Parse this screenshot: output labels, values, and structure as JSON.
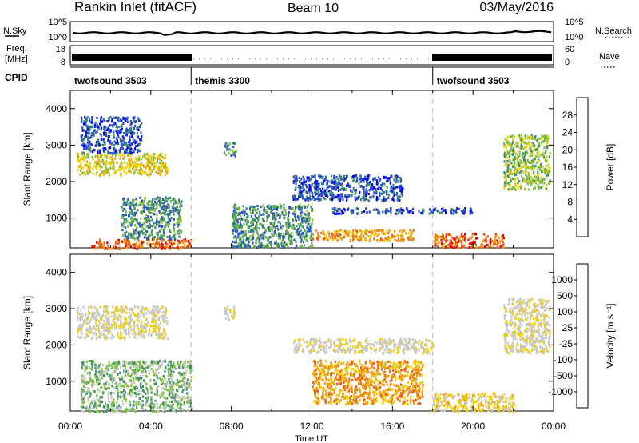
{
  "header": {
    "station": "Rankin Inlet (fitACF)",
    "beam": "Beam 10",
    "date": "03/May/2016"
  },
  "summary_panels": {
    "nsky_label": "N.Sky",
    "nsky_ticks": [
      "10^5",
      "10^0"
    ],
    "nsearch_label": "N.Search",
    "nsearch_ticks": [
      "10^5",
      "10^0"
    ],
    "freq_label": "Freq.",
    "freq_unit": "[MHz]",
    "freq_ticks": [
      "18",
      "8"
    ],
    "nave_label": "Nave",
    "nave_ticks": [
      "60",
      "0"
    ],
    "cpid_label": "CPID",
    "cpid_segments": [
      {
        "start_hour": 0,
        "end_hour": 6,
        "label": "twofsound 3503"
      },
      {
        "start_hour": 6,
        "end_hour": 18,
        "label": "themis 3300"
      },
      {
        "start_hour": 18,
        "end_hour": 24,
        "label": "twofsound 3503"
      }
    ]
  },
  "chart_data": [
    {
      "type": "heatmap",
      "panel": "power",
      "xlabel": "Time UT",
      "ylabel": "Slant Range [km]",
      "xlim": [
        0,
        24
      ],
      "ylim": [
        180,
        4500
      ],
      "yticks": [
        1000,
        2000,
        3000,
        4000
      ],
      "colorbar": {
        "label": "Power [dB]",
        "ticks": [
          "28",
          "24",
          "20",
          "16",
          "12",
          "8",
          "4"
        ],
        "colors": [
          "#0000ff",
          "#2a52c8",
          "#3a8f6a",
          "#7fbf3f",
          "#f0d000",
          "#f5a000",
          "#f46010",
          "#e00000"
        ]
      },
      "regions": [
        {
          "t": [
            0.3,
            4.8
          ],
          "r": [
            2200,
            2800
          ],
          "level": 4
        },
        {
          "t": [
            0.5,
            3.5
          ],
          "r": [
            2800,
            3800
          ],
          "level": 1
        },
        {
          "t": [
            1.0,
            6.0
          ],
          "r": [
            180,
            450
          ],
          "level": 6
        },
        {
          "t": [
            2.5,
            5.5
          ],
          "r": [
            450,
            1600
          ],
          "level": 2
        },
        {
          "t": [
            7.6,
            8.2
          ],
          "r": [
            2700,
            3100
          ],
          "level": 2
        },
        {
          "t": [
            8.0,
            12.0
          ],
          "r": [
            200,
            1400
          ],
          "level": 2
        },
        {
          "t": [
            11.0,
            16.5
          ],
          "r": [
            1500,
            2200
          ],
          "level": 1
        },
        {
          "t": [
            12.0,
            17.0
          ],
          "r": [
            400,
            700
          ],
          "level": 5
        },
        {
          "t": [
            13.0,
            20.0
          ],
          "r": [
            1150,
            1300
          ],
          "level": 1
        },
        {
          "t": [
            18.0,
            21.5
          ],
          "r": [
            200,
            600
          ],
          "level": 6
        },
        {
          "t": [
            21.5,
            23.8
          ],
          "r": [
            1800,
            3300
          ],
          "level": 3
        }
      ]
    },
    {
      "type": "heatmap",
      "panel": "velocity",
      "xlabel": "Time UT",
      "ylabel": "Slant Range [km]",
      "xlim": [
        0,
        24
      ],
      "ylim": [
        180,
        4500
      ],
      "yticks": [
        1000,
        2000,
        3000,
        4000
      ],
      "xticks": [
        "00:00",
        "04:00",
        "08:00",
        "12:00",
        "16:00",
        "20:00",
        "00:00"
      ],
      "colorbar": {
        "label": "Velocity [m s⁻¹]",
        "ticks": [
          "1000",
          "500",
          "100",
          "25",
          "-25",
          "-100",
          "-500",
          "-1000"
        ],
        "colors": [
          "#e00000",
          "#f46010",
          "#f5a000",
          "#f0d000",
          "#c8c8c8",
          "#c8c8c8",
          "#7fbf3f",
          "#3a8f6a",
          "#2a52c8"
        ]
      },
      "regions": [
        {
          "t": [
            0.3,
            4.8
          ],
          "r": [
            2200,
            3100
          ],
          "level": 4
        },
        {
          "t": [
            0.5,
            6.0
          ],
          "r": [
            180,
            1600
          ],
          "level": 6
        },
        {
          "t": [
            7.6,
            8.2
          ],
          "r": [
            2700,
            3100
          ],
          "level": 4
        },
        {
          "t": [
            11.0,
            18.0
          ],
          "r": [
            1800,
            2200
          ],
          "level": 4
        },
        {
          "t": [
            12.0,
            17.5
          ],
          "r": [
            400,
            1600
          ],
          "level": 2
        },
        {
          "t": [
            18.0,
            22.0
          ],
          "r": [
            200,
            700
          ],
          "level": 3
        },
        {
          "t": [
            21.5,
            23.8
          ],
          "r": [
            1800,
            3300
          ],
          "level": 4
        }
      ]
    }
  ]
}
